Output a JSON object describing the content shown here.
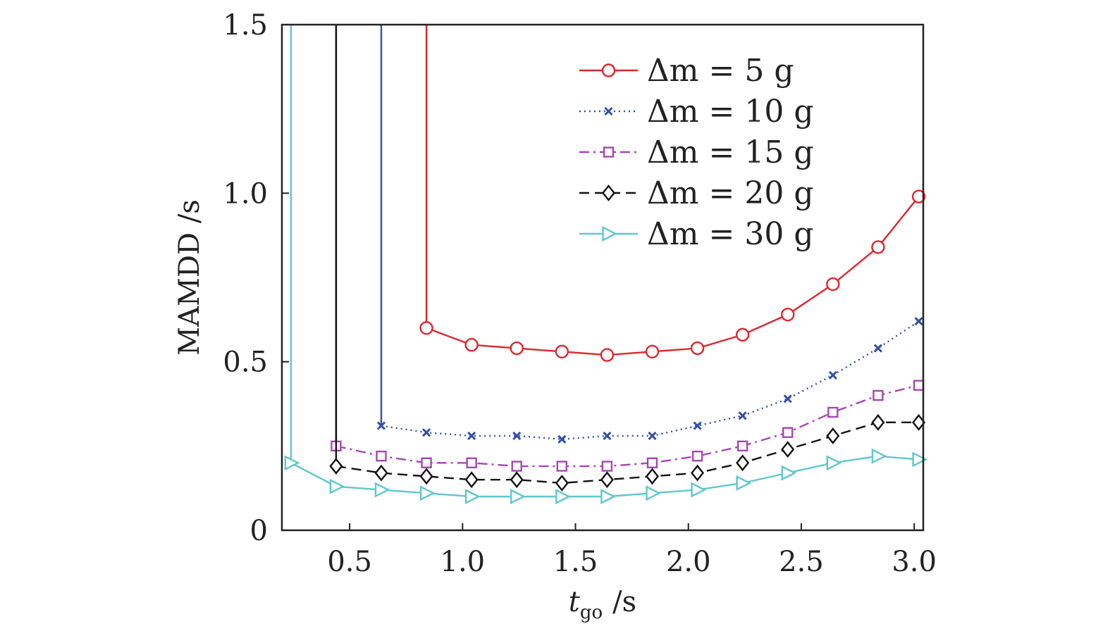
{
  "chart_data": {
    "type": "line",
    "title": "",
    "xlabel_main": "t",
    "xlabel_sub": "go",
    "xlabel_unit": "/s",
    "ylabel": "MAMDD /s",
    "xlim": [
      0.2,
      3.04
    ],
    "ylim": [
      0,
      1.5
    ],
    "xticks": [
      0.5,
      1.0,
      1.5,
      2.0,
      2.5,
      3.0
    ],
    "xtick_labels": [
      "0.5",
      "1.0",
      "1.5",
      "2.0",
      "2.5",
      "3.0"
    ],
    "yticks": [
      0,
      0.5,
      1.0,
      1.5
    ],
    "ytick_labels": [
      "0",
      "0.5",
      "1.0",
      "1.5"
    ],
    "grid": false,
    "legend_position": "top-right",
    "x": [
      0.24,
      0.44,
      0.64,
      0.84,
      1.04,
      1.24,
      1.44,
      1.64,
      1.84,
      2.04,
      2.24,
      2.44,
      2.64,
      2.84,
      3.02
    ],
    "series": [
      {
        "name": "Δm = 5 g",
        "color": "#e0262d",
        "marker": "circle",
        "dash": "solid",
        "x": [
          0.84,
          1.04,
          1.24,
          1.44,
          1.64,
          1.84,
          2.04,
          2.24,
          2.44,
          2.64,
          2.84,
          3.02
        ],
        "values": [
          0.6,
          0.55,
          0.54,
          0.53,
          0.52,
          0.53,
          0.54,
          0.58,
          0.64,
          0.73,
          0.84,
          0.99
        ],
        "start_x": 0.84
      },
      {
        "name": "Δm = 10 g",
        "color": "#3350a8",
        "marker": "x",
        "dash": "dotted",
        "x": [
          0.64,
          0.84,
          1.04,
          1.24,
          1.44,
          1.64,
          1.84,
          2.04,
          2.24,
          2.44,
          2.64,
          2.84,
          3.02
        ],
        "values": [
          0.31,
          0.29,
          0.28,
          0.28,
          0.27,
          0.28,
          0.28,
          0.31,
          0.34,
          0.39,
          0.46,
          0.54,
          0.62
        ],
        "start_x": 0.64
      },
      {
        "name": "Δm = 15 g",
        "color": "#a646b3",
        "marker": "square",
        "dash": "dashdot",
        "x": [
          0.44,
          0.64,
          0.84,
          1.04,
          1.24,
          1.44,
          1.64,
          1.84,
          2.04,
          2.24,
          2.44,
          2.64,
          2.84,
          3.02
        ],
        "values": [
          0.25,
          0.22,
          0.2,
          0.2,
          0.19,
          0.19,
          0.19,
          0.2,
          0.22,
          0.25,
          0.29,
          0.35,
          0.4,
          0.43
        ],
        "start_x": 0.44
      },
      {
        "name": "Δm = 20 g",
        "color": "#111111",
        "marker": "diamond",
        "dash": "dashed",
        "x": [
          0.44,
          0.64,
          0.84,
          1.04,
          1.24,
          1.44,
          1.64,
          1.84,
          2.04,
          2.24,
          2.44,
          2.64,
          2.84,
          3.02
        ],
        "values": [
          0.19,
          0.17,
          0.16,
          0.15,
          0.15,
          0.14,
          0.15,
          0.16,
          0.17,
          0.2,
          0.24,
          0.28,
          0.32,
          0.32
        ],
        "start_x": 0.44
      },
      {
        "name": "Δm = 30 g",
        "color": "#5fc7cf",
        "marker": "triangle-right",
        "dash": "solid",
        "x": [
          0.24,
          0.44,
          0.64,
          0.84,
          1.04,
          1.24,
          1.44,
          1.64,
          1.84,
          2.04,
          2.24,
          2.44,
          2.64,
          2.84,
          3.02
        ],
        "values": [
          0.2,
          0.13,
          0.12,
          0.11,
          0.1,
          0.1,
          0.1,
          0.1,
          0.11,
          0.12,
          0.14,
          0.17,
          0.2,
          0.22,
          0.21
        ],
        "start_x": 0.24
      }
    ]
  }
}
